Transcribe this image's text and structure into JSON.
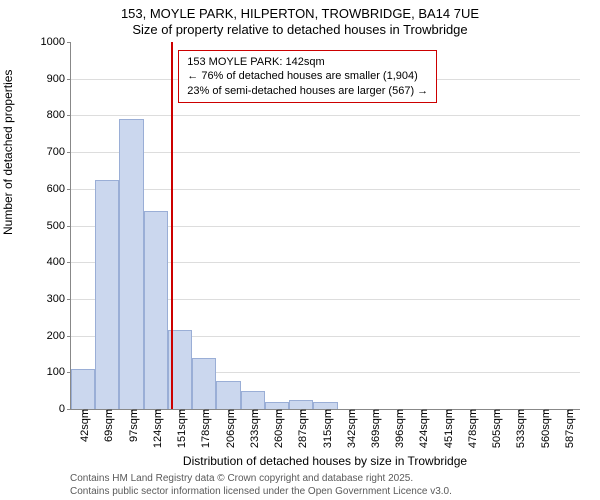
{
  "title_line1": "153, MOYLE PARK, HILPERTON, TROWBRIDGE, BA14 7UE",
  "title_line2": "Size of property relative to detached houses in Trowbridge",
  "ylabel": "Number of detached properties",
  "xlabel": "Distribution of detached houses by size in Trowbridge",
  "footer_line1": "Contains HM Land Registry data © Crown copyright and database right 2025.",
  "footer_line2": "Contains public sector information licensed under the Open Government Licence v3.0.",
  "chart": {
    "type": "histogram",
    "ylim": [
      0,
      1000
    ],
    "ytick_step": 100,
    "bar_fill": "#cbd7ee",
    "bar_stroke": "#9aaed6",
    "grid_color": "#dddddd",
    "background_color": "#ffffff",
    "axis_color": "#888888",
    "bar_width_rel": 1.0,
    "x_labels": [
      "42sqm",
      "69sqm",
      "97sqm",
      "124sqm",
      "151sqm",
      "178sqm",
      "206sqm",
      "233sqm",
      "260sqm",
      "287sqm",
      "315sqm",
      "342sqm",
      "369sqm",
      "396sqm",
      "424sqm",
      "451sqm",
      "478sqm",
      "505sqm",
      "533sqm",
      "560sqm",
      "587sqm"
    ],
    "bars": [
      {
        "x": 42,
        "y": 110
      },
      {
        "x": 69,
        "y": 625
      },
      {
        "x": 97,
        "y": 790
      },
      {
        "x": 124,
        "y": 540
      },
      {
        "x": 151,
        "y": 215
      },
      {
        "x": 178,
        "y": 140
      },
      {
        "x": 206,
        "y": 75
      },
      {
        "x": 233,
        "y": 50
      },
      {
        "x": 260,
        "y": 18
      },
      {
        "x": 287,
        "y": 25
      },
      {
        "x": 315,
        "y": 20
      }
    ],
    "x_domain_min": 28,
    "x_domain_max": 601,
    "marker": {
      "x": 142,
      "color": "#cc0000",
      "line_width": 2
    },
    "annotation": {
      "line1": "153 MOYLE PARK: 142sqm",
      "line2": "← 76% of detached houses are smaller (1,904)",
      "line3": "23% of semi-detached houses are larger (567) →",
      "border_color": "#cc0000",
      "text_color": "#000000",
      "font_size": 11
    }
  }
}
